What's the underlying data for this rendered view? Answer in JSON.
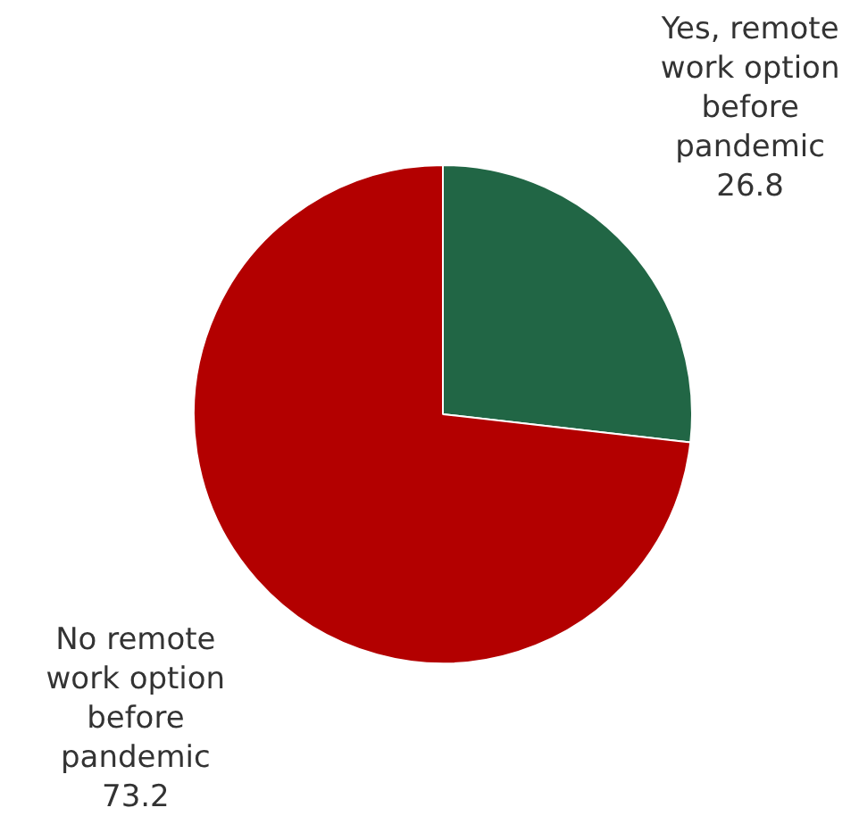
{
  "chart_data": {
    "type": "pie",
    "categories": [
      "Yes, remote work option before pandemic",
      "No remote work option before pandemic"
    ],
    "values": [
      26.8,
      73.2
    ],
    "colors": [
      "#216645",
      "#b30000"
    ],
    "data_labels": true,
    "legend": false
  }
}
